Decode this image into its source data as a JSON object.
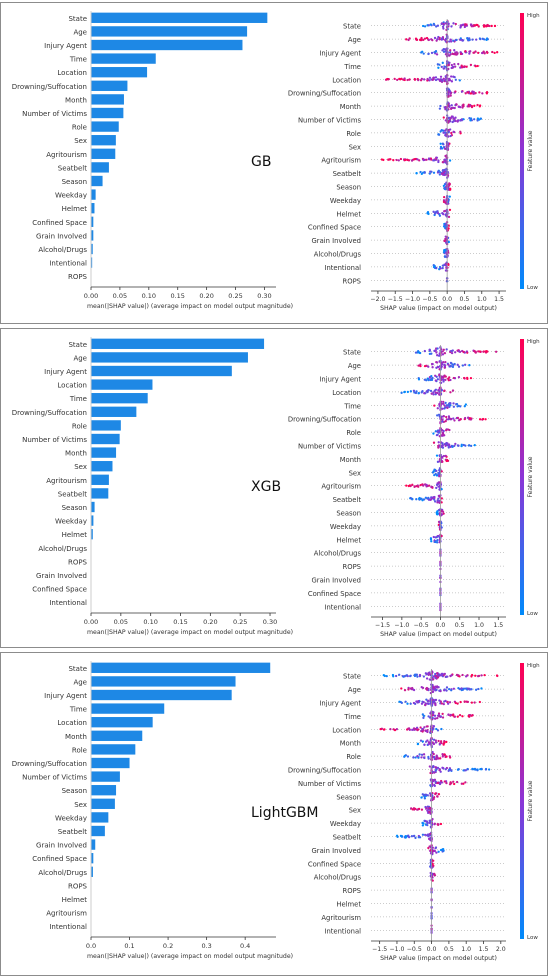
{
  "panels": [
    {
      "model_label": "GB",
      "bar_chart": {
        "type": "bar",
        "orientation": "horizontal",
        "categories": [
          "State",
          "Age",
          "Injury Agent",
          "Time",
          "Location",
          "Drowning/Suffocation",
          "Month",
          "Number of Victims",
          "Role",
          "Sex",
          "Agritourism",
          "Seatbelt",
          "Season",
          "Weekday",
          "Helmet",
          "Confined Space",
          "Grain Involved",
          "Alcohol/Drugs",
          "Intentional",
          "ROPS"
        ],
        "values": [
          0.305,
          0.27,
          0.262,
          0.112,
          0.097,
          0.063,
          0.057,
          0.056,
          0.048,
          0.043,
          0.042,
          0.031,
          0.02,
          0.008,
          0.006,
          0.004,
          0.004,
          0.003,
          0.002,
          0.0
        ],
        "xlim": [
          0,
          0.32
        ],
        "xticks": [
          "0.00",
          "0.05",
          "0.10",
          "0.15",
          "0.20",
          "0.25",
          "0.30"
        ],
        "xlabel": "mean(|SHAP value|) (average impact on model output magnitude)",
        "bar_color": "#1e88e5"
      },
      "beeswarm": {
        "type": "scatter",
        "features": [
          "State",
          "Age",
          "Injury Agent",
          "Time",
          "Location",
          "Drowning/Suffocation",
          "Month",
          "Number of Victims",
          "Role",
          "Sex",
          "Agritourism",
          "Seatbelt",
          "Season",
          "Weekday",
          "Helmet",
          "Confined Space",
          "Grain Involved",
          "Alcohol/Drugs",
          "Intentional",
          "ROPS"
        ],
        "spread": [
          [
            -0.7,
            1.4
          ],
          [
            -1.2,
            1.3
          ],
          [
            -0.8,
            1.5
          ],
          [
            -0.3,
            1.0
          ],
          [
            -1.8,
            0.4
          ],
          [
            -0.1,
            1.2
          ],
          [
            -0.3,
            1.0
          ],
          [
            -0.2,
            1.0
          ],
          [
            -0.3,
            0.4
          ],
          [
            -0.2,
            0.1
          ],
          [
            -2.0,
            0.1
          ],
          [
            -0.9,
            0.1
          ],
          [
            -0.1,
            0.1
          ],
          [
            -0.1,
            0.1
          ],
          [
            -0.6,
            0.1
          ],
          [
            -0.1,
            0.05
          ],
          [
            -0.1,
            0.05
          ],
          [
            -0.1,
            0.05
          ],
          [
            -0.4,
            0.05
          ],
          [
            -0.02,
            0.02
          ]
        ],
        "xlim": [
          -2.2,
          1.7
        ],
        "xticks": [
          -2.0,
          -1.5,
          -1.0,
          -0.5,
          0.0,
          0.5,
          1.0,
          1.5
        ],
        "xtick_labels": [
          "−2.0",
          "−1.5",
          "−1.0",
          "−0.5",
          "0.0",
          "0.5",
          "1.0",
          "1.5"
        ],
        "xlabel": "SHAP value (impact on model output)"
      }
    },
    {
      "model_label": "XGB",
      "bar_chart": {
        "type": "bar",
        "orientation": "horizontal",
        "categories": [
          "State",
          "Age",
          "Injury Agent",
          "Location",
          "Time",
          "Drowning/Suffocation",
          "Role",
          "Number of Victims",
          "Month",
          "Sex",
          "Agritourism",
          "Seatbelt",
          "Season",
          "Weekday",
          "Helmet",
          "Alcohol/Drugs",
          "ROPS",
          "Grain Involved",
          "Confined Space",
          "Intentional"
        ],
        "values": [
          0.29,
          0.263,
          0.236,
          0.103,
          0.095,
          0.076,
          0.05,
          0.048,
          0.042,
          0.036,
          0.03,
          0.029,
          0.006,
          0.004,
          0.003,
          0.0,
          0.0,
          0.0,
          0.0,
          0.0
        ],
        "xlim": [
          0,
          0.31
        ],
        "xticks": [
          "0.00",
          "0.05",
          "0.10",
          "0.15",
          "0.20",
          "0.25",
          "0.30"
        ],
        "xlabel": "mean(|SHAP value|) (average impact on model output magnitude)",
        "bar_color": "#1e88e5"
      },
      "beeswarm": {
        "type": "scatter",
        "features": [
          "State",
          "Age",
          "Injury Agent",
          "Location",
          "Time",
          "Drowning/Suffocation",
          "Role",
          "Number of Victims",
          "Month",
          "Sex",
          "Agritourism",
          "Seatbelt",
          "Season",
          "Weekday",
          "Helmet",
          "Alcohol/Drugs",
          "ROPS",
          "Grain Involved",
          "Confined Space",
          "Intentional"
        ],
        "spread": [
          [
            -0.7,
            1.5
          ],
          [
            -0.6,
            1.0
          ],
          [
            -0.7,
            0.8
          ],
          [
            -1.1,
            0.4
          ],
          [
            -0.2,
            0.7
          ],
          [
            -0.1,
            1.2
          ],
          [
            -0.2,
            0.3
          ],
          [
            -0.2,
            0.9
          ],
          [
            -0.1,
            0.2
          ],
          [
            -0.2,
            0.05
          ],
          [
            -0.9,
            0.05
          ],
          [
            -0.8,
            0.05
          ],
          [
            -0.1,
            0.1
          ],
          [
            -0.05,
            0.05
          ],
          [
            -0.3,
            0.05
          ],
          [
            0,
            0
          ],
          [
            0,
            0
          ],
          [
            0,
            0
          ],
          [
            0,
            0
          ],
          [
            0,
            0
          ]
        ],
        "xlim": [
          -1.8,
          1.7
        ],
        "xticks": [
          -1.5,
          -1.0,
          -0.5,
          0.0,
          0.5,
          1.0,
          1.5
        ],
        "xtick_labels": [
          "−1.5",
          "−1.0",
          "−0.5",
          "0.0",
          "0.5",
          "1.0",
          "1.5"
        ],
        "xlabel": "SHAP value (impact on model output)"
      }
    },
    {
      "model_label": "LightGBM",
      "bar_chart": {
        "type": "bar",
        "orientation": "horizontal",
        "categories": [
          "State",
          "Age",
          "Injury Agent",
          "Time",
          "Location",
          "Month",
          "Role",
          "Drowning/Suffocation",
          "Number of Victims",
          "Season",
          "Sex",
          "Weekday",
          "Seatbelt",
          "Grain Involved",
          "Confined Space",
          "Alcohol/Drugs",
          "ROPS",
          "Helmet",
          "Agritourism",
          "Intentional"
        ],
        "values": [
          0.465,
          0.375,
          0.365,
          0.19,
          0.16,
          0.133,
          0.115,
          0.1,
          0.075,
          0.065,
          0.062,
          0.045,
          0.036,
          0.011,
          0.006,
          0.005,
          0.0,
          0.0,
          0.0,
          0.0
        ],
        "xlim": [
          0,
          0.48
        ],
        "xticks": [
          "0.0",
          "0.1",
          "0.2",
          "0.3",
          "0.4"
        ],
        "xlabel": "mean(|SHAP value|) (average impact on model output magnitude)",
        "bar_color": "#1e88e5"
      },
      "beeswarm": {
        "type": "scatter",
        "features": [
          "State",
          "Age",
          "Injury Agent",
          "Time",
          "Location",
          "Month",
          "Role",
          "Drowning/Suffocation",
          "Number of Victims",
          "Season",
          "Sex",
          "Weekday",
          "Seatbelt",
          "Grain Involved",
          "Confined Space",
          "Alcohol/Drugs",
          "ROPS",
          "Helmet",
          "Agritourism",
          "Intentional"
        ],
        "spread": [
          [
            -1.4,
            1.9
          ],
          [
            -1.0,
            1.6
          ],
          [
            -1.1,
            1.4
          ],
          [
            -0.3,
            1.2
          ],
          [
            -1.5,
            0.3
          ],
          [
            -0.4,
            0.6
          ],
          [
            -0.8,
            0.6
          ],
          [
            -0.1,
            1.7
          ],
          [
            -0.1,
            1.0
          ],
          [
            -0.3,
            0.3
          ],
          [
            -0.6,
            0.05
          ],
          [
            -0.3,
            0.3
          ],
          [
            -1.0,
            0.05
          ],
          [
            -0.1,
            0.4
          ],
          [
            -0.05,
            0.05
          ],
          [
            -0.05,
            0.1
          ],
          [
            0,
            0
          ],
          [
            0,
            0
          ],
          [
            0,
            0
          ],
          [
            0,
            0
          ]
        ],
        "xlim": [
          -1.75,
          2.15
        ],
        "xticks": [
          -1.5,
          -1.0,
          -0.5,
          0.0,
          0.5,
          1.0,
          1.5,
          2.0
        ],
        "xtick_labels": [
          "−1.5",
          "−1.0",
          "−0.5",
          "0.0",
          "0.5",
          "1.0",
          "1.5",
          "2.0"
        ],
        "xlabel": "SHAP value (impact on model output)"
      }
    }
  ],
  "colorbar": {
    "label": "Feature value",
    "high": "High",
    "low": "Low",
    "color_high": "#ff0052",
    "color_mid": "#8b35d6",
    "color_low": "#008bfb"
  }
}
